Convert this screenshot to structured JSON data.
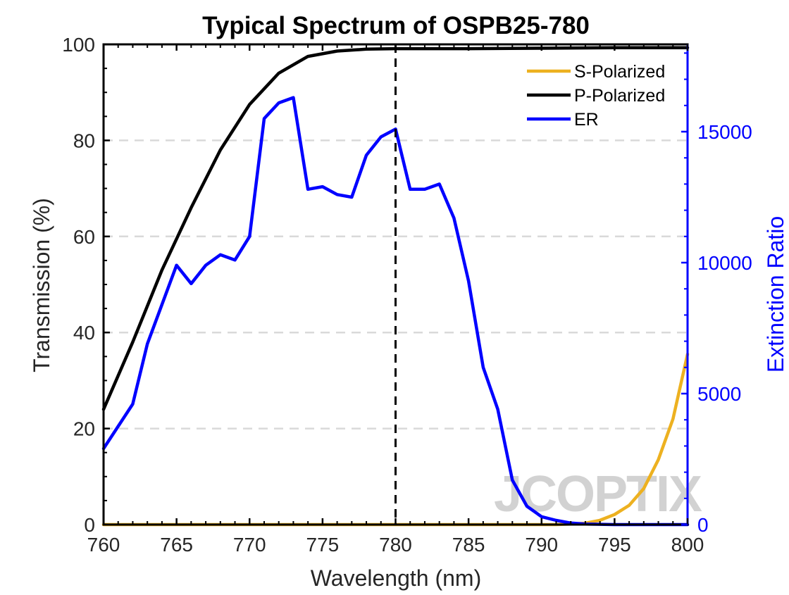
{
  "chart_data": {
    "type": "line",
    "title": "Typical Spectrum of OSPB25-780",
    "xlabel": "Wavelength (nm)",
    "ylabel_left": "Transmission (%)",
    "ylabel_right": "Extinction Ratio",
    "xlim": [
      760,
      800
    ],
    "ylim_left": [
      0,
      100
    ],
    "ylim_right": [
      0,
      18333
    ],
    "x_ticks": [
      "760",
      "765",
      "770",
      "775",
      "780",
      "785",
      "790",
      "795",
      "800"
    ],
    "y_ticks_left": [
      "0",
      "20",
      "40",
      "60",
      "80",
      "100"
    ],
    "y_ticks_right": [
      "0",
      "5000",
      "10000",
      "15000"
    ],
    "grid": "dashed horizontal",
    "legend_position": "top-right",
    "marker_line_x": 780,
    "watermark": "JCOPTIX",
    "series": [
      {
        "name": "S-Polarized",
        "axis": "left",
        "color": "#EDB120",
        "x": [
          760,
          765,
          770,
          775,
          780,
          785,
          790,
          791,
          792,
          793,
          794,
          795,
          796,
          797,
          798,
          799,
          800
        ],
        "y": [
          0,
          0,
          0,
          0,
          0,
          0,
          0,
          0,
          0.1,
          0.3,
          0.9,
          2.1,
          4.0,
          7.5,
          13.5,
          22.0,
          35.5
        ]
      },
      {
        "name": "P-Polarized",
        "axis": "left",
        "color": "#000000",
        "x": [
          760,
          762,
          764,
          766,
          768,
          770,
          772,
          774,
          776,
          778,
          780,
          785,
          790,
          795,
          800
        ],
        "y": [
          24,
          38,
          53,
          66,
          78,
          87.5,
          94,
          97.5,
          98.6,
          99.0,
          99.1,
          99.1,
          99.2,
          99.3,
          99.3
        ]
      },
      {
        "name": "ER",
        "axis": "right",
        "color": "#0000FF",
        "x": [
          760,
          762,
          763,
          765,
          766,
          767,
          768,
          769,
          770,
          771,
          772,
          773,
          774,
          775,
          776,
          777,
          778,
          779,
          780,
          781,
          782,
          783,
          784,
          785,
          786,
          787,
          788,
          789,
          790,
          791,
          792,
          793,
          794,
          795,
          800
        ],
        "y": [
          2900,
          4600,
          6900,
          9900,
          9200,
          9900,
          10300,
          10100,
          11000,
          15500,
          16100,
          16300,
          12800,
          12900,
          12600,
          12500,
          14100,
          14800,
          15100,
          12800,
          12800,
          13000,
          11700,
          9300,
          6000,
          4400,
          1700,
          700,
          300,
          160,
          60,
          20,
          10,
          0,
          0
        ]
      }
    ]
  }
}
